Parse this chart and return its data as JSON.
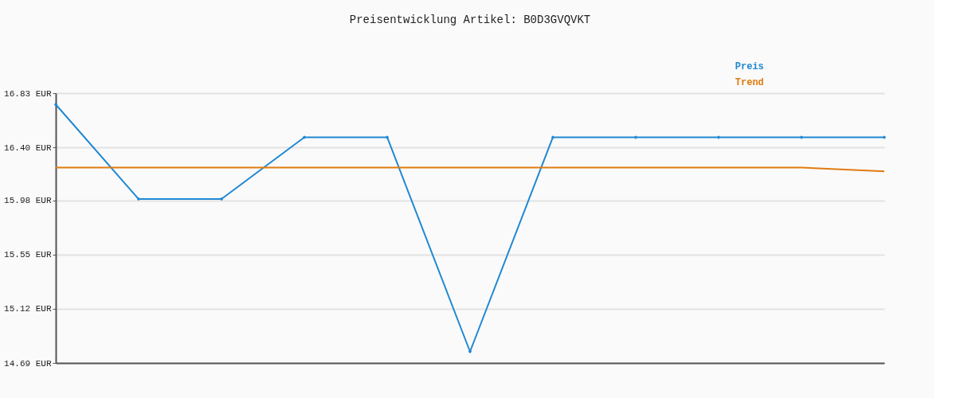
{
  "chart_data": {
    "type": "line",
    "title": "Preisentwicklung Artikel: B0D3GVQVKT",
    "categories": [
      null,
      null,
      null,
      null,
      null,
      null,
      null,
      null,
      null,
      null,
      null
    ],
    "series": [
      {
        "name": "Preis",
        "color": "#1f88d2",
        "marker": "diamond",
        "values": [
          16.74,
          15.99,
          15.99,
          16.48,
          16.48,
          14.78,
          16.48,
          16.48,
          16.48,
          16.48,
          16.48
        ]
      },
      {
        "name": "Trend",
        "color": "#e07b0f",
        "marker": "none",
        "values": [
          16.24,
          16.24,
          16.24,
          16.24,
          16.24,
          16.24,
          16.24,
          16.24,
          16.24,
          16.24,
          16.21
        ]
      }
    ],
    "ylim": [
      14.69,
      16.83
    ],
    "yticks": [
      {
        "value": 14.69,
        "label": "14.69 EUR"
      },
      {
        "value": 15.12,
        "label": "15.12 EUR"
      },
      {
        "value": 15.55,
        "label": "15.55 EUR"
      },
      {
        "value": 15.98,
        "label": "15.98 EUR"
      },
      {
        "value": 16.4,
        "label": "16.40 EUR"
      },
      {
        "value": 16.83,
        "label": "16.83 EUR"
      }
    ],
    "grid": "y",
    "legend": "top right",
    "tick_labels": "y"
  }
}
